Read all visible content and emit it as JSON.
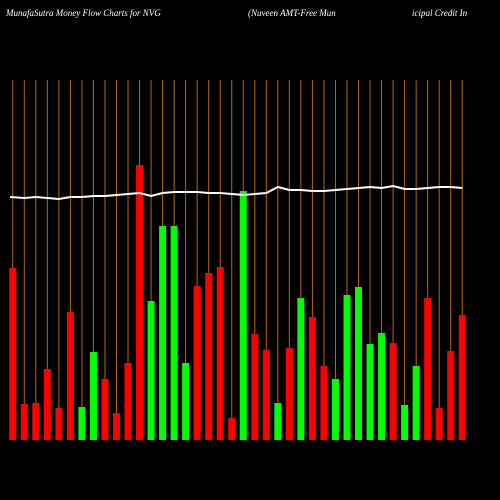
{
  "chart_data": {
    "type": "bar",
    "title_parts": [
      "MunafaSutra  Money Flow  Charts for NVG",
      "(Nuveen  AMT-Free   Mun",
      "icipal Credit In"
    ],
    "categories": [
      null,
      null,
      null,
      null,
      null,
      null,
      null,
      null,
      null,
      null,
      null,
      null,
      null,
      null,
      null,
      null,
      null,
      null,
      null,
      null,
      null,
      null,
      null,
      null,
      null,
      null,
      null,
      null,
      null,
      null,
      null,
      null,
      null,
      null,
      null,
      null,
      null,
      null,
      null,
      null
    ],
    "values": [
      172,
      36,
      37,
      71,
      32,
      128,
      33,
      88,
      61,
      27,
      77,
      275,
      139,
      214,
      214,
      77,
      154,
      167,
      173,
      22,
      249,
      106,
      90,
      37,
      92,
      142,
      123,
      74,
      61,
      145,
      153,
      96,
      107,
      97,
      35,
      74,
      142,
      32,
      89,
      125
    ],
    "colors": [
      "#ff0000",
      "#ff0000",
      "#ff0000",
      "#ff0000",
      "#ff0000",
      "#ff0000",
      "#00ff00",
      "#00ff00",
      "#ff0000",
      "#ff0000",
      "#ff0000",
      "#ff0000",
      "#00ff00",
      "#00ff00",
      "#00ff00",
      "#00ff00",
      "#ff0000",
      "#ff0000",
      "#ff0000",
      "#ff0000",
      "#00ff00",
      "#ff0000",
      "#ff0000",
      "#00ff00",
      "#ff0000",
      "#00ff00",
      "#ff0000",
      "#ff0000",
      "#00ff00",
      "#00ff00",
      "#00ff00",
      "#00ff00",
      "#00ff00",
      "#ff0000",
      "#00ff00",
      "#00ff00",
      "#ff0000",
      "#ff0000",
      "#ff0000",
      "#ff0000"
    ],
    "line": {
      "color": "#ffffff",
      "values": [
        243,
        242,
        243,
        242,
        241,
        243,
        243,
        244,
        244,
        245,
        246,
        247,
        244,
        247,
        248,
        248,
        248,
        247,
        247,
        246,
        245,
        246,
        247,
        253,
        250,
        250,
        249,
        249,
        250,
        251,
        252,
        253,
        252,
        254,
        251,
        251,
        252,
        253,
        253,
        252
      ]
    },
    "ylim": [
      0,
      300
    ]
  }
}
